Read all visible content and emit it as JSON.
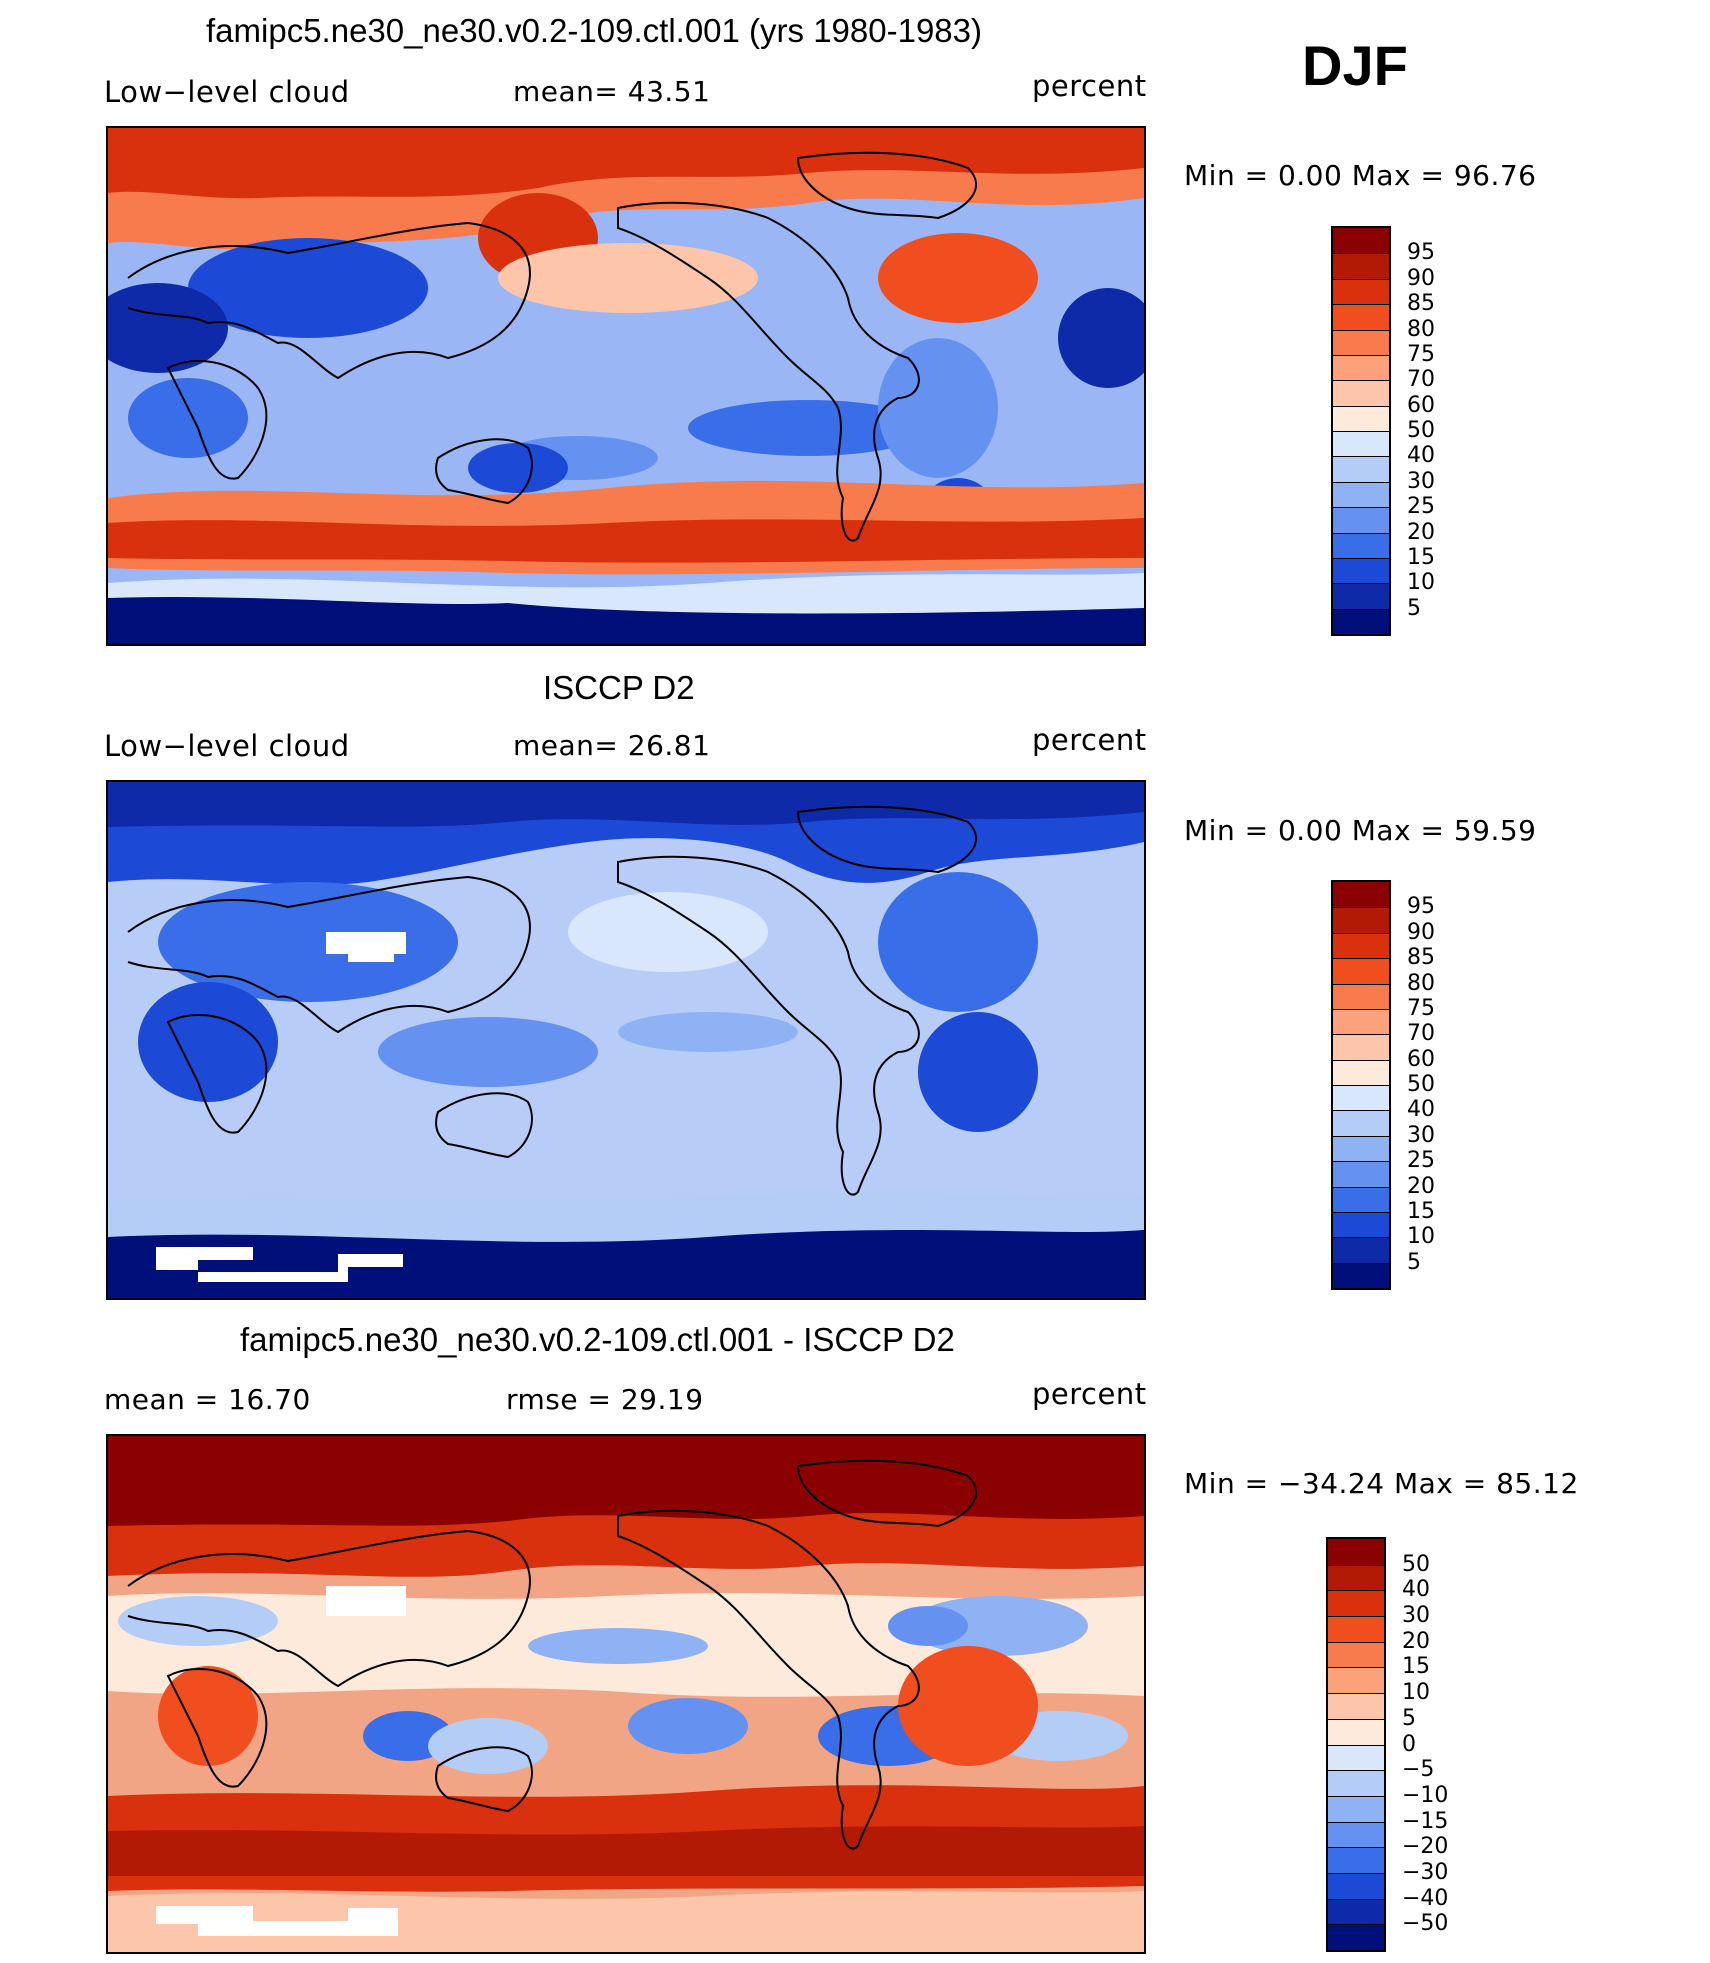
{
  "season": "DJF",
  "panels": [
    {
      "title": "famipc5.ne30_ne30.v0.2-109.ctl.001 (yrs 1980-1983)",
      "left_label": "Low−level cloud",
      "mid_label": "mean=   43.51",
      "units": "percent",
      "minmax": "Min =     0.00  Max =    96.76",
      "map": {
        "base": "#9ab6f5",
        "style": "model"
      }
    },
    {
      "title": "ISCCP D2",
      "left_label": "Low−level cloud",
      "mid_label": "mean=   26.81",
      "units": "percent",
      "minmax": "Min =     0.00  Max =    59.59",
      "map": {
        "base": "#b7cdf7",
        "style": "obs"
      }
    },
    {
      "title": "famipc5.ne30_ne30.v0.2-109.ctl.001 - ISCCP D2",
      "left_label": "mean =    16.70",
      "mid_label": "rmse =    29.19",
      "units": "percent",
      "minmax": "Min = −34.24  Max =    85.12",
      "map": {
        "base": "#f2a584",
        "style": "diff"
      }
    }
  ],
  "colorbars": [
    {
      "labels": [
        "95",
        "90",
        "85",
        "80",
        "75",
        "70",
        "60",
        "50",
        "40",
        "30",
        "25",
        "20",
        "15",
        "10",
        "5"
      ],
      "colors": [
        "#8b0000",
        "#b31a06",
        "#d9300d",
        "#f04e1e",
        "#f87b4d",
        "#fba27d",
        "#fdc6aa",
        "#fdeadb",
        "#d8e7fb",
        "#b3cdf7",
        "#8eb2f4",
        "#6592f1",
        "#3a6ee8",
        "#1c4ad6",
        "#0e2aa8",
        "#000f7a"
      ]
    },
    {
      "labels": [
        "95",
        "90",
        "85",
        "80",
        "75",
        "70",
        "60",
        "50",
        "40",
        "30",
        "25",
        "20",
        "15",
        "10",
        "5"
      ],
      "colors": [
        "#8b0000",
        "#b31a06",
        "#d9300d",
        "#f04e1e",
        "#f87b4d",
        "#fba27d",
        "#fdc6aa",
        "#fdeadb",
        "#d8e7fb",
        "#b3cdf7",
        "#8eb2f4",
        "#6592f1",
        "#3a6ee8",
        "#1c4ad6",
        "#0e2aa8",
        "#000f7a"
      ]
    },
    {
      "labels": [
        "50",
        "40",
        "30",
        "20",
        "15",
        "10",
        "5",
        "0",
        "−5",
        "−10",
        "−15",
        "−20",
        "−30",
        "−40",
        "−50"
      ],
      "colors": [
        "#8b0000",
        "#b31a06",
        "#d9300d",
        "#f04e1e",
        "#f87b4d",
        "#fba27d",
        "#fdc6aa",
        "#fdeadb",
        "#d8e7fb",
        "#b3cdf7",
        "#8eb2f4",
        "#6592f1",
        "#3a6ee8",
        "#1c4ad6",
        "#0e2aa8",
        "#000f7a"
      ]
    }
  ]
}
